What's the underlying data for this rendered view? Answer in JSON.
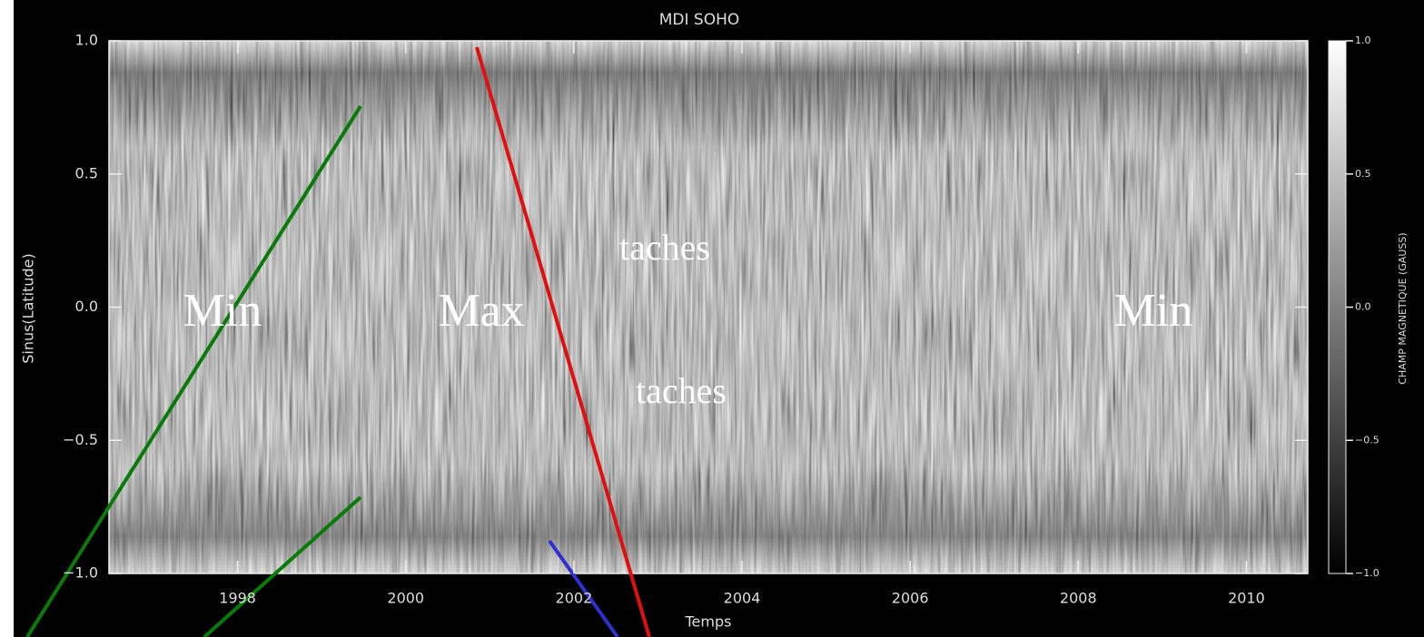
{
  "chart_data": {
    "type": "heatmap",
    "title": "MDI SOHO",
    "x_label": "Temps",
    "y_label": "Sinus(Latitude)",
    "xlim": [
      1996.47,
      2010.73
    ],
    "xticks": [
      1998,
      2000,
      2002,
      2004,
      2006,
      2008,
      2010
    ],
    "ylim": [
      -1,
      1
    ],
    "yticks": [
      {
        "value": -1,
        "label": "−1.0"
      },
      {
        "value": -0.5,
        "label": "−0.5"
      },
      {
        "value": 0,
        "label": "0.0"
      },
      {
        "value": 0.5,
        "label": "0.5"
      },
      {
        "value": 1,
        "label": "1.0"
      }
    ],
    "colorbar": {
      "label": "CHAMP MAGNETIQUE (GAUSS)",
      "lim": [
        -1,
        1
      ],
      "ticks": [
        {
          "value": -1,
          "label": "−1.0"
        },
        {
          "value": -0.5,
          "label": "−0.5"
        },
        {
          "value": 0,
          "label": "0.0"
        },
        {
          "value": 0.5,
          "label": "0.5"
        },
        {
          "value": 1,
          "label": "1.0"
        }
      ]
    },
    "annotations": [
      "Min",
      "Max",
      "Min",
      "taches",
      "taches"
    ]
  }
}
